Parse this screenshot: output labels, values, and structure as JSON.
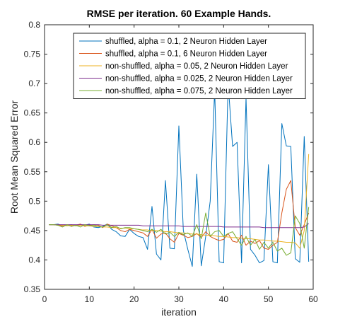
{
  "chart_data": {
    "type": "line",
    "title": "RMSE per iteration. 60 Example Hands.",
    "xlabel": "iteration",
    "ylabel": "Root Mean Squared Error",
    "xlim": [
      0,
      60
    ],
    "ylim": [
      0.35,
      0.8
    ],
    "xticks": [
      "0",
      "10",
      "20",
      "30",
      "40",
      "50",
      "60"
    ],
    "yticks": [
      "0.35",
      "0.4",
      "0.45",
      "0.5",
      "0.55",
      "0.6",
      "0.65",
      "0.7",
      "0.75",
      "0.8"
    ],
    "grid": false,
    "legend_position": "top-right",
    "x": [
      1,
      2,
      3,
      4,
      5,
      6,
      7,
      8,
      9,
      10,
      11,
      12,
      13,
      14,
      15,
      16,
      17,
      18,
      19,
      20,
      21,
      22,
      23,
      24,
      25,
      26,
      27,
      28,
      29,
      30,
      31,
      32,
      33,
      34,
      35,
      36,
      37,
      38,
      39,
      40,
      41,
      42,
      43,
      44,
      45,
      46,
      47,
      48,
      49,
      50,
      51,
      52,
      53,
      54,
      55,
      56,
      57,
      58,
      59
    ],
    "series": [
      {
        "name": "shuffled, alpha = 0.1, 2 Neuron Hidden Layer",
        "color": "#0072BD",
        "values": [
          0.46,
          0.46,
          0.461,
          0.458,
          0.459,
          0.46,
          0.458,
          0.46,
          0.459,
          0.461,
          0.456,
          0.455,
          0.457,
          0.461,
          0.452,
          0.448,
          0.441,
          0.44,
          0.452,
          0.445,
          0.44,
          0.438,
          0.418,
          0.491,
          0.41,
          0.4,
          0.535,
          0.42,
          0.419,
          0.628,
          0.45,
          0.418,
          0.389,
          0.546,
          0.39,
          0.44,
          0.5,
          0.69,
          0.397,
          0.395,
          0.701,
          0.593,
          0.6,
          0.395,
          0.676,
          0.418,
          0.408,
          0.395,
          0.399,
          0.562,
          0.397,
          0.395,
          0.632,
          0.594,
          0.593,
          0.402,
          0.396,
          0.61,
          0.397
        ]
      },
      {
        "name": "shuffled, alpha = 0.1, 6 Neuron Hidden Layer",
        "color": "#D95319",
        "values": [
          0.46,
          0.46,
          0.459,
          0.458,
          0.46,
          0.458,
          0.459,
          0.461,
          0.457,
          0.459,
          0.46,
          0.459,
          0.455,
          0.461,
          0.458,
          0.455,
          0.45,
          0.448,
          0.452,
          0.45,
          0.448,
          0.446,
          0.44,
          0.452,
          0.437,
          0.444,
          0.446,
          0.436,
          0.43,
          0.445,
          0.442,
          0.438,
          0.44,
          0.445,
          0.438,
          0.448,
          0.44,
          0.436,
          0.433,
          0.435,
          0.445,
          0.432,
          0.43,
          0.442,
          0.425,
          0.432,
          0.428,
          0.433,
          0.42,
          0.418,
          0.425,
          0.43,
          0.48,
          0.52,
          0.535,
          0.455,
          0.442,
          0.46,
          0.48
        ]
      },
      {
        "name": "non-shuffled, alpha = 0.05, 2 Neuron Hidden Layer",
        "color": "#EDB120",
        "values": [
          0.46,
          0.46,
          0.46,
          0.459,
          0.458,
          0.459,
          0.458,
          0.459,
          0.458,
          0.458,
          0.457,
          0.457,
          0.456,
          0.456,
          0.455,
          0.455,
          0.454,
          0.454,
          0.453,
          0.453,
          0.452,
          0.451,
          0.451,
          0.45,
          0.45,
          0.449,
          0.448,
          0.448,
          0.447,
          0.446,
          0.446,
          0.445,
          0.444,
          0.444,
          0.443,
          0.442,
          0.442,
          0.441,
          0.44,
          0.44,
          0.439,
          0.438,
          0.438,
          0.437,
          0.436,
          0.436,
          0.435,
          0.434,
          0.434,
          0.433,
          0.432,
          0.432,
          0.431,
          0.43,
          0.43,
          0.429,
          0.42,
          0.45,
          0.58
        ]
      },
      {
        "name": "non-shuffled, alpha = 0.025, 2 Neuron Hidden Layer",
        "color": "#7E2F8E",
        "values": [
          0.46,
          0.46,
          0.46,
          0.46,
          0.46,
          0.46,
          0.46,
          0.46,
          0.46,
          0.46,
          0.46,
          0.46,
          0.459,
          0.459,
          0.459,
          0.459,
          0.459,
          0.459,
          0.459,
          0.459,
          0.459,
          0.458,
          0.458,
          0.458,
          0.458,
          0.458,
          0.458,
          0.458,
          0.458,
          0.458,
          0.457,
          0.457,
          0.457,
          0.457,
          0.457,
          0.457,
          0.457,
          0.457,
          0.457,
          0.456,
          0.456,
          0.456,
          0.456,
          0.456,
          0.456,
          0.456,
          0.456,
          0.456,
          0.455,
          0.455,
          0.455,
          0.455,
          0.455,
          0.455,
          0.455,
          0.455,
          0.455,
          0.456,
          0.462
        ]
      },
      {
        "name": "non-shuffled, alpha = 0.075, 2 Neuron Hidden Layer",
        "color": "#77AC30",
        "values": [
          0.46,
          0.46,
          0.459,
          0.456,
          0.46,
          0.457,
          0.459,
          0.456,
          0.46,
          0.458,
          0.459,
          0.457,
          0.456,
          0.46,
          0.455,
          0.457,
          0.453,
          0.455,
          0.455,
          0.453,
          0.452,
          0.45,
          0.448,
          0.452,
          0.447,
          0.452,
          0.444,
          0.447,
          0.44,
          0.447,
          0.443,
          0.446,
          0.44,
          0.46,
          0.436,
          0.48,
          0.44,
          0.448,
          0.45,
          0.44,
          0.445,
          0.448,
          0.436,
          0.425,
          0.44,
          0.425,
          0.435,
          0.418,
          0.43,
          0.42,
          0.43,
          0.415,
          0.42,
          0.408,
          0.412,
          0.475,
          0.462,
          0.42,
          0.49
        ]
      }
    ]
  }
}
